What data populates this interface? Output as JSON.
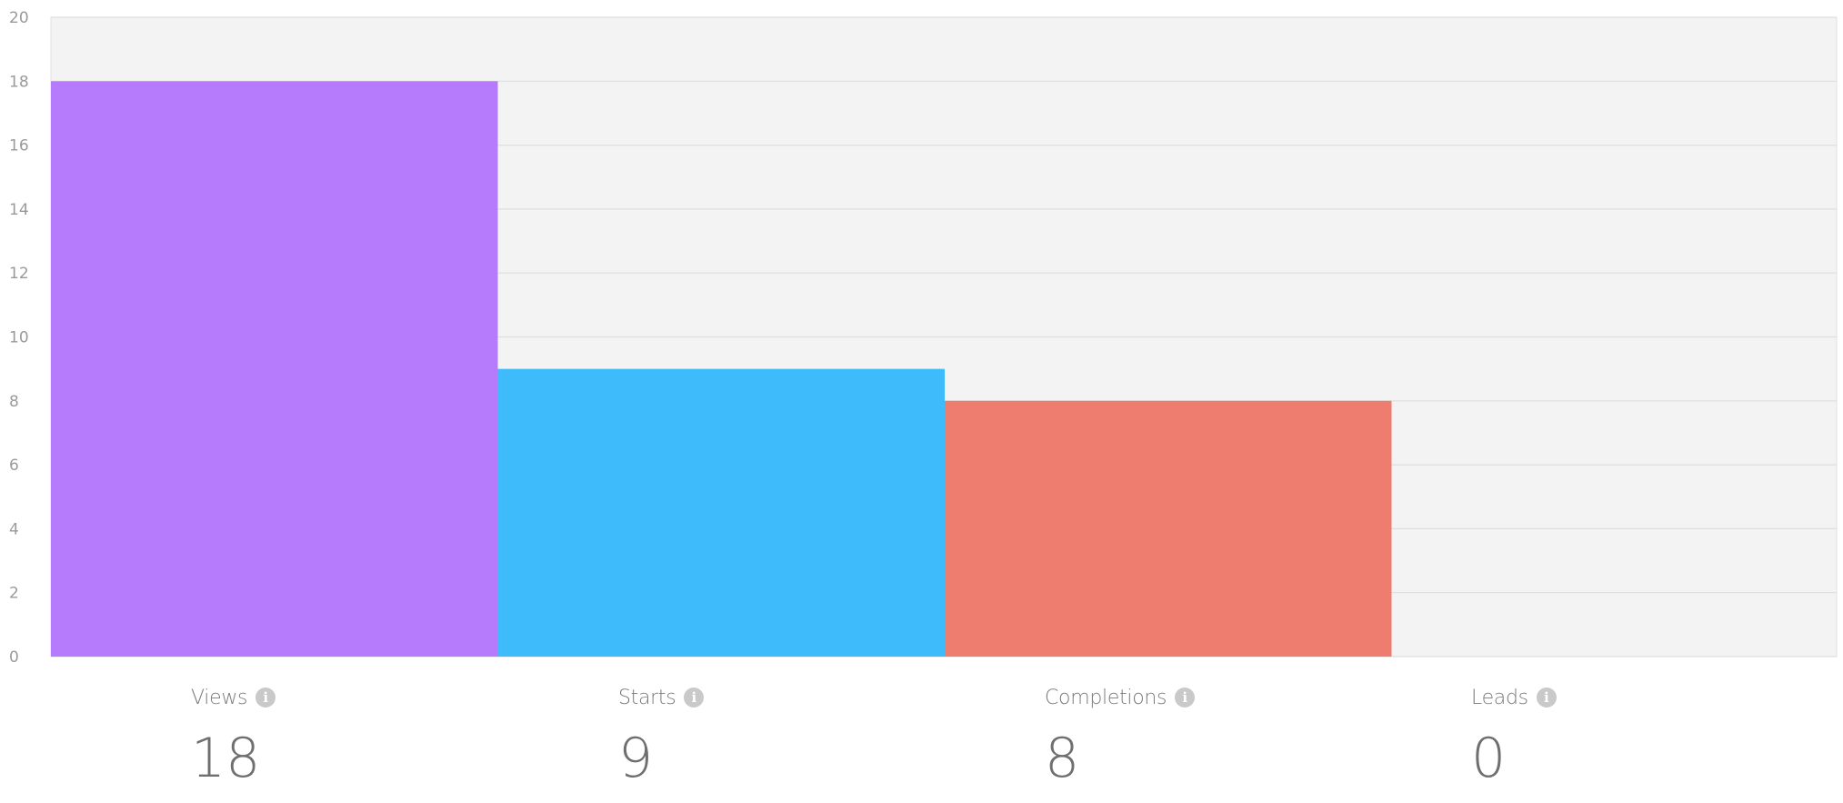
{
  "chart_data": {
    "type": "bar",
    "categories": [
      "Views",
      "Starts",
      "Completions",
      "Leads"
    ],
    "values": [
      18,
      9,
      8,
      0
    ],
    "colors": [
      "#b57bfc",
      "#3dbbfa",
      "#ee7d6f",
      "#cccccc"
    ],
    "ylim": [
      0,
      20
    ],
    "yticks": [
      0,
      2,
      4,
      6,
      8,
      10,
      12,
      14,
      16,
      18,
      20
    ],
    "grid": true,
    "background": "#f3f3f3",
    "legend": "none"
  },
  "stats": [
    {
      "label": "Views",
      "value": "18",
      "icon": "info-icon"
    },
    {
      "label": "Starts",
      "value": "9",
      "icon": "info-icon"
    },
    {
      "label": "Completions",
      "value": "8",
      "icon": "info-icon"
    },
    {
      "label": "Leads",
      "value": "0",
      "icon": "info-icon"
    }
  ]
}
